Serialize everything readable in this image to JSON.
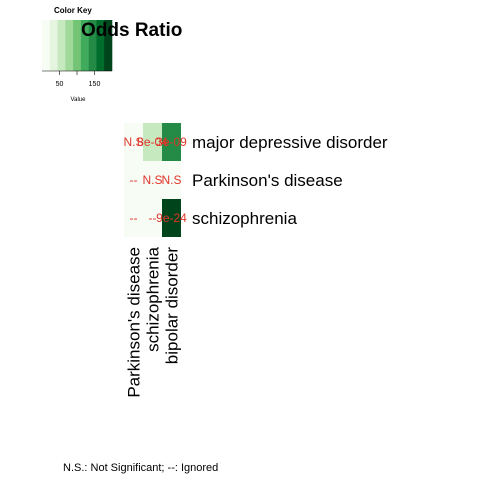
{
  "chart_data": {
    "type": "heatmap",
    "title": "Odds Ratio",
    "rows": [
      "major depressive disorder",
      "Parkinson's disease",
      "schizophrenia"
    ],
    "columns": [
      "Parkinson's disease",
      "schizophrenia",
      "bipolar disorder"
    ],
    "values": [
      [
        5,
        45,
        150
      ],
      [
        5,
        5,
        5
      ],
      [
        5,
        5,
        190
      ]
    ],
    "cell_labels": [
      [
        "N.S",
        "8e-04",
        "3e-09"
      ],
      [
        "--",
        "N.S",
        "N.S"
      ],
      [
        "--",
        "--",
        "9e-24"
      ]
    ],
    "colorscale": [
      "#f7fcf5",
      "#e5f5e0",
      "#c7e9c0",
      "#a1d99b",
      "#74c476",
      "#41ab5d",
      "#238b45",
      "#006d2c",
      "#00441b"
    ],
    "color_key": {
      "title": "Color Key",
      "xlabel": "Value",
      "ticks": [
        50,
        100,
        150
      ],
      "tick_labels": [
        "50",
        "",
        "150"
      ],
      "range": [
        0,
        200
      ]
    }
  },
  "footnote": "N.S.: Not Significant; --: Ignored"
}
